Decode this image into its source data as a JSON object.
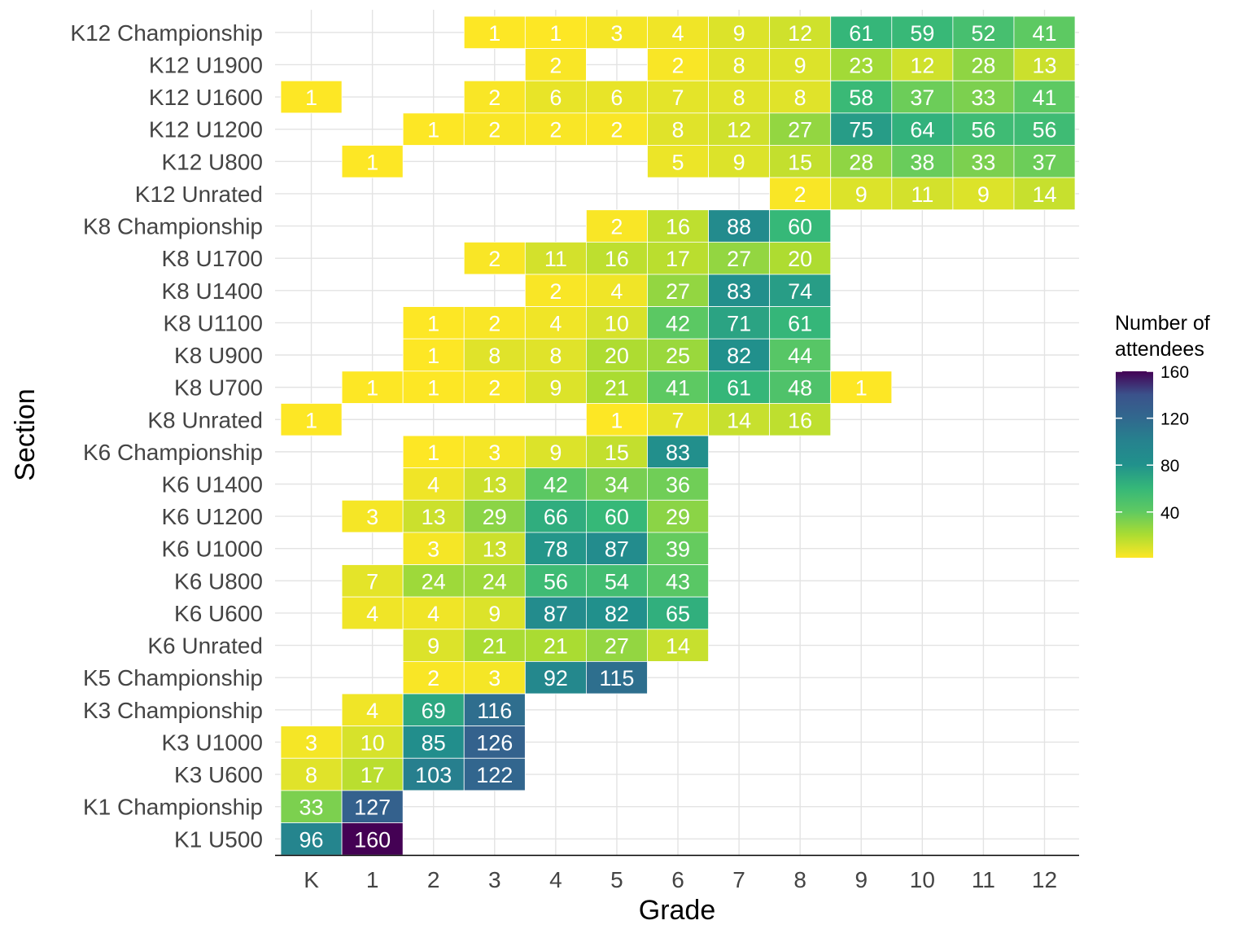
{
  "chart_data": {
    "type": "heatmap",
    "title": "",
    "xlabel": "Grade",
    "ylabel": "Section",
    "x_categories": [
      "K",
      "1",
      "2",
      "3",
      "4",
      "5",
      "6",
      "7",
      "8",
      "9",
      "10",
      "11",
      "12"
    ],
    "y_categories": [
      "K12 Championship",
      "K12 U1900",
      "K12 U1600",
      "K12 U1200",
      "K12 U800",
      "K12 Unrated",
      "K8 Championship",
      "K8 U1700",
      "K8 U1400",
      "K8 U1100",
      "K8 U900",
      "K8 U700",
      "K8 Unrated",
      "K6 Championship",
      "K6 U1400",
      "K6 U1200",
      "K6 U1000",
      "K6 U800",
      "K6 U600",
      "K6 Unrated",
      "K5 Championship",
      "K3 Championship",
      "K3 U1000",
      "K3 U600",
      "K1 Championship",
      "K1 U500"
    ],
    "values": [
      [
        null,
        null,
        null,
        1,
        1,
        3,
        4,
        9,
        12,
        61,
        59,
        52,
        41
      ],
      [
        null,
        null,
        null,
        null,
        2,
        null,
        2,
        8,
        9,
        23,
        12,
        28,
        13
      ],
      [
        1,
        null,
        null,
        2,
        6,
        6,
        7,
        8,
        8,
        58,
        37,
        33,
        41
      ],
      [
        null,
        null,
        1,
        2,
        2,
        2,
        8,
        12,
        27,
        75,
        64,
        56,
        56
      ],
      [
        null,
        1,
        null,
        null,
        null,
        null,
        5,
        9,
        15,
        28,
        38,
        33,
        37
      ],
      [
        null,
        null,
        null,
        null,
        null,
        null,
        null,
        null,
        2,
        9,
        11,
        9,
        14
      ],
      [
        null,
        null,
        null,
        null,
        null,
        2,
        16,
        88,
        60,
        null,
        null,
        null,
        null
      ],
      [
        null,
        null,
        null,
        2,
        11,
        16,
        17,
        27,
        20,
        null,
        null,
        null,
        null
      ],
      [
        null,
        null,
        null,
        null,
        2,
        4,
        27,
        83,
        74,
        null,
        null,
        null,
        null
      ],
      [
        null,
        null,
        1,
        2,
        4,
        10,
        42,
        71,
        61,
        null,
        null,
        null,
        null
      ],
      [
        null,
        null,
        1,
        8,
        8,
        20,
        25,
        82,
        44,
        null,
        null,
        null,
        null
      ],
      [
        null,
        1,
        1,
        2,
        9,
        21,
        41,
        61,
        48,
        1,
        null,
        null,
        null
      ],
      [
        1,
        null,
        null,
        null,
        null,
        1,
        7,
        14,
        16,
        null,
        null,
        null,
        null
      ],
      [
        null,
        null,
        1,
        3,
        9,
        15,
        83,
        null,
        null,
        null,
        null,
        null,
        null
      ],
      [
        null,
        null,
        4,
        13,
        42,
        34,
        36,
        null,
        null,
        null,
        null,
        null,
        null
      ],
      [
        null,
        3,
        13,
        29,
        66,
        60,
        29,
        null,
        null,
        null,
        null,
        null,
        null
      ],
      [
        null,
        null,
        3,
        13,
        78,
        87,
        39,
        null,
        null,
        null,
        null,
        null,
        null
      ],
      [
        null,
        7,
        24,
        24,
        56,
        54,
        43,
        null,
        null,
        null,
        null,
        null,
        null
      ],
      [
        null,
        4,
        4,
        9,
        87,
        82,
        65,
        null,
        null,
        null,
        null,
        null,
        null
      ],
      [
        null,
        null,
        9,
        21,
        21,
        27,
        14,
        null,
        null,
        null,
        null,
        null,
        null
      ],
      [
        null,
        null,
        2,
        3,
        92,
        115,
        null,
        null,
        null,
        null,
        null,
        null,
        null
      ],
      [
        null,
        4,
        69,
        116,
        null,
        null,
        null,
        null,
        null,
        null,
        null,
        null,
        null
      ],
      [
        3,
        10,
        85,
        126,
        null,
        null,
        null,
        null,
        null,
        null,
        null,
        null,
        null
      ],
      [
        8,
        17,
        103,
        122,
        null,
        null,
        null,
        null,
        null,
        null,
        null,
        null,
        null
      ],
      [
        33,
        127,
        null,
        null,
        null,
        null,
        null,
        null,
        null,
        null,
        null,
        null,
        null
      ],
      [
        96,
        160,
        null,
        null,
        null,
        null,
        null,
        null,
        null,
        null,
        null,
        null,
        null
      ]
    ],
    "legend": {
      "title_lines": [
        "Number of",
        "attendees"
      ],
      "ticks": [
        40,
        80,
        120,
        160
      ],
      "range": [
        1,
        160
      ],
      "placement": "right"
    },
    "colorscale": "viridis-reversed",
    "grid": true
  }
}
